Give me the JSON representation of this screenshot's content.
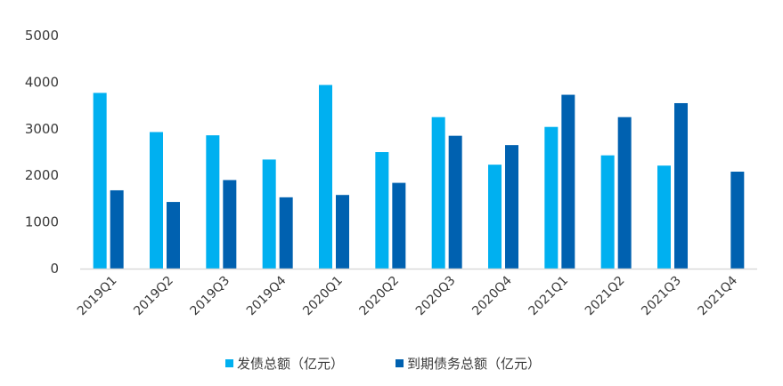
{
  "chart_data": {
    "type": "bar",
    "categories": [
      "2019Q1",
      "2019Q2",
      "2019Q3",
      "2019Q4",
      "2020Q1",
      "2020Q2",
      "2020Q3",
      "2020Q4",
      "2021Q1",
      "2021Q2",
      "2021Q3",
      "2021Q4"
    ],
    "series": [
      {
        "name": "发债总额（亿元）",
        "color": "#00b0f0",
        "values": [
          3770,
          2930,
          2860,
          2340,
          3940,
          2500,
          3250,
          2230,
          3040,
          2430,
          2210,
          null
        ]
      },
      {
        "name": "到期债务总额（亿元）",
        "color": "#0061b0",
        "values": [
          1680,
          1430,
          1900,
          1530,
          1580,
          1840,
          2850,
          2650,
          3730,
          3250,
          3550,
          2080
        ]
      }
    ],
    "yticks": [
      0,
      1000,
      2000,
      3000,
      4000,
      5000
    ],
    "ylim": [
      0,
      5000
    ],
    "grid": false,
    "legend": "bottom",
    "axis_color": "#d9d9d9"
  }
}
